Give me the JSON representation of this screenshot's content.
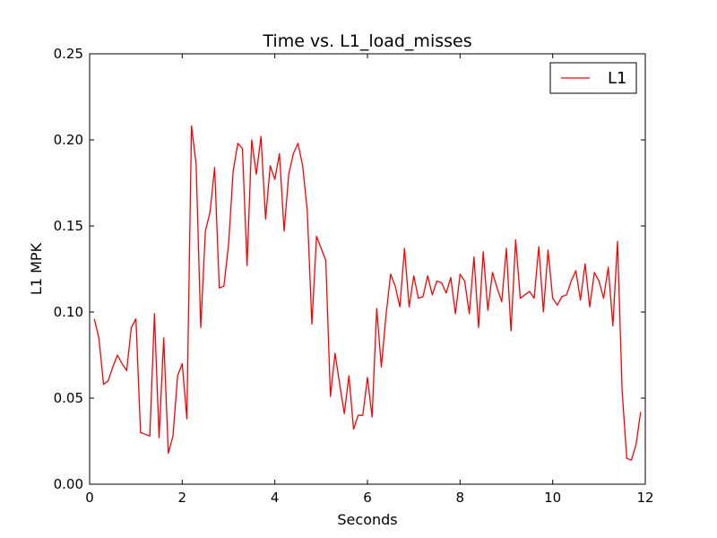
{
  "chart_data": {
    "type": "line",
    "title": "Time vs. L1_load_misses",
    "xlabel": "Seconds",
    "ylabel": "L1 MPK",
    "xlim": [
      0,
      12
    ],
    "ylim": [
      0,
      0.25
    ],
    "xticks": [
      "0",
      "2",
      "4",
      "6",
      "8",
      "10",
      "12"
    ],
    "yticks": [
      "0.00",
      "0.05",
      "0.10",
      "0.15",
      "0.20",
      "0.25"
    ],
    "grid": false,
    "legend_position": "top-right",
    "series": [
      {
        "name": "L1",
        "color": "#ff0000",
        "x": [
          0.1,
          0.2,
          0.3,
          0.4,
          0.5,
          0.6,
          0.7,
          0.8,
          0.9,
          1.0,
          1.1,
          1.2,
          1.3,
          1.4,
          1.5,
          1.6,
          1.7,
          1.8,
          1.9,
          2.0,
          2.1,
          2.2,
          2.3,
          2.4,
          2.5,
          2.6,
          2.7,
          2.8,
          2.9,
          3.0,
          3.1,
          3.2,
          3.3,
          3.4,
          3.5,
          3.6,
          3.7,
          3.8,
          3.9,
          4.0,
          4.1,
          4.2,
          4.3,
          4.4,
          4.5,
          4.6,
          4.7,
          4.8,
          4.9,
          5.0,
          5.1,
          5.2,
          5.3,
          5.4,
          5.5,
          5.6,
          5.7,
          5.8,
          5.9,
          6.0,
          6.1,
          6.2,
          6.3,
          6.4,
          6.5,
          6.6,
          6.7,
          6.8,
          6.9,
          7.0,
          7.1,
          7.2,
          7.3,
          7.4,
          7.5,
          7.6,
          7.7,
          7.8,
          7.9,
          8.0,
          8.1,
          8.2,
          8.3,
          8.4,
          8.5,
          8.6,
          8.7,
          8.8,
          8.9,
          9.0,
          9.1,
          9.2,
          9.3,
          9.4,
          9.5,
          9.6,
          9.7,
          9.8,
          9.9,
          10.0,
          10.1,
          10.2,
          10.3,
          10.4,
          10.5,
          10.6,
          10.7,
          10.8,
          10.9,
          11.0,
          11.1,
          11.2,
          11.3,
          11.4,
          11.5,
          11.6,
          11.7,
          11.8,
          11.9
        ],
        "y": [
          0.096,
          0.085,
          0.058,
          0.06,
          0.068,
          0.075,
          0.07,
          0.066,
          0.091,
          0.096,
          0.03,
          0.029,
          0.028,
          0.099,
          0.027,
          0.085,
          0.018,
          0.028,
          0.063,
          0.07,
          0.038,
          0.208,
          0.186,
          0.091,
          0.147,
          0.158,
          0.184,
          0.114,
          0.115,
          0.139,
          0.182,
          0.198,
          0.195,
          0.127,
          0.2,
          0.18,
          0.202,
          0.154,
          0.185,
          0.177,
          0.192,
          0.147,
          0.18,
          0.192,
          0.198,
          0.185,
          0.159,
          0.093,
          0.144,
          0.137,
          0.13,
          0.051,
          0.076,
          0.058,
          0.041,
          0.063,
          0.032,
          0.04,
          0.04,
          0.062,
          0.039,
          0.102,
          0.068,
          0.098,
          0.122,
          0.115,
          0.103,
          0.137,
          0.103,
          0.121,
          0.108,
          0.109,
          0.121,
          0.11,
          0.118,
          0.117,
          0.111,
          0.12,
          0.099,
          0.122,
          0.118,
          0.099,
          0.132,
          0.091,
          0.135,
          0.101,
          0.123,
          0.114,
          0.106,
          0.137,
          0.089,
          0.142,
          0.108,
          0.11,
          0.112,
          0.108,
          0.138,
          0.1,
          0.136,
          0.108,
          0.104,
          0.109,
          0.11,
          0.118,
          0.124,
          0.107,
          0.128,
          0.103,
          0.123,
          0.118,
          0.108,
          0.126,
          0.092,
          0.141,
          0.054,
          0.015,
          0.014,
          0.023,
          0.042
        ]
      }
    ]
  }
}
